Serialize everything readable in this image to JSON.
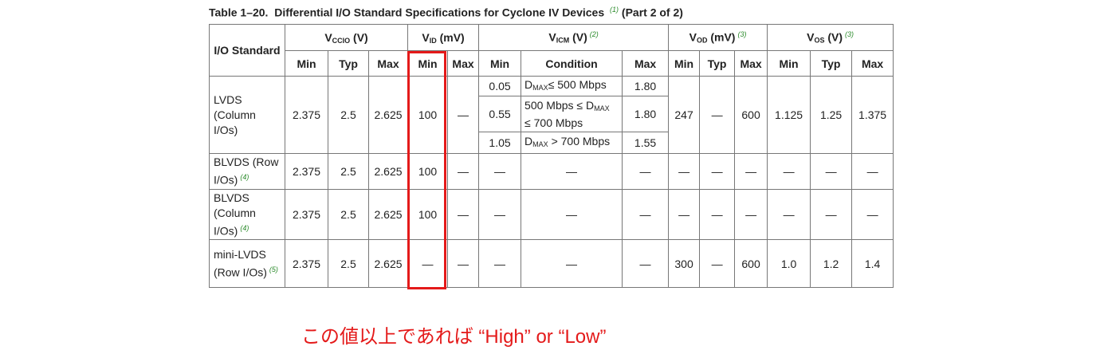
{
  "header": {
    "label": "Table 1–20.",
    "title": "Differential I/O Standard Specifications for Cyclone IV Devices",
    "note": "(1)",
    "part": "(Part 2 of 2)"
  },
  "table": {
    "row_header": "I/O Standard",
    "groups": [
      {
        "base": "V",
        "sub": "CCIO",
        "unit": "(V)",
        "columns": [
          "Min",
          "Typ",
          "Max"
        ]
      },
      {
        "base": "V",
        "sub": "ID",
        "unit": "(mV)",
        "columns": [
          "Min",
          "Max"
        ]
      },
      {
        "base": "V",
        "sub": "ICM",
        "unit": "(V)",
        "note": "(2)",
        "columns": [
          "Min",
          "Condition",
          "Max"
        ]
      },
      {
        "base": "V",
        "sub": "OD",
        "unit": "(mV)",
        "note": "(3)",
        "columns": [
          "Min",
          "Typ",
          "Max"
        ]
      },
      {
        "base": "V",
        "sub": "OS",
        "unit": "(V)",
        "note": "(3)",
        "columns": [
          "Min",
          "Typ",
          "Max"
        ]
      }
    ],
    "rows": [
      {
        "standard": [
          "LVDS",
          "(Column",
          "I/Os)"
        ],
        "vccio": [
          "2.375",
          "2.5",
          "2.625"
        ],
        "vid": [
          "100",
          "—"
        ],
        "vicm": [
          {
            "min": "0.05",
            "condition": [
              {
                "text": "D"
              },
              {
                "sub": "MAX"
              },
              {
                "text": "≤  500 Mbps"
              }
            ],
            "max": "1.80"
          },
          {
            "min": "0.55",
            "condition": [
              {
                "text": "500 Mbps ≤ D"
              },
              {
                "sub": "MAX"
              },
              {
                "text": " ≤ 700 Mbps"
              }
            ],
            "max": "1.80"
          },
          {
            "min": "1.05",
            "condition": [
              {
                "text": "D"
              },
              {
                "sub": "MAX"
              },
              {
                "text": " > 700 Mbps"
              }
            ],
            "max": "1.55"
          }
        ],
        "vod": [
          "247",
          "—",
          "600"
        ],
        "vos": [
          "1.125",
          "1.25",
          "1.375"
        ]
      },
      {
        "standard": [
          "BLVDS (Row",
          "I/Os)"
        ],
        "note": "(4)",
        "vccio": [
          "2.375",
          "2.5",
          "2.625"
        ],
        "vid": [
          "100",
          "—"
        ],
        "vicm": [
          {
            "min": "—",
            "condition": [
              {
                "text": "—"
              }
            ],
            "max": "—"
          }
        ],
        "vod": [
          "—",
          "—",
          "—"
        ],
        "vos": [
          "—",
          "—",
          "—"
        ]
      },
      {
        "standard": [
          "BLVDS",
          "(Column",
          "I/Os)"
        ],
        "note": "(4)",
        "vccio": [
          "2.375",
          "2.5",
          "2.625"
        ],
        "vid": [
          "100",
          "—"
        ],
        "vicm": [
          {
            "min": "—",
            "condition": [
              {
                "text": "—"
              }
            ],
            "max": "—"
          }
        ],
        "vod": [
          "—",
          "—",
          "—"
        ],
        "vos": [
          "—",
          "—",
          "—"
        ]
      },
      {
        "standard": [
          "mini-LVDS",
          "(Row I/Os)"
        ],
        "note": "(5)",
        "vccio": [
          "2.375",
          "2.5",
          "2.625"
        ],
        "vid": [
          "—",
          "—"
        ],
        "vicm": [
          {
            "min": "—",
            "condition": [
              {
                "text": "—"
              }
            ],
            "max": "—"
          }
        ],
        "vod": [
          "300",
          "—",
          "600"
        ],
        "vos": [
          "1.0",
          "1.2",
          "1.4"
        ]
      }
    ]
  },
  "annotation": "この値以上であれば “High” or “Low”"
}
